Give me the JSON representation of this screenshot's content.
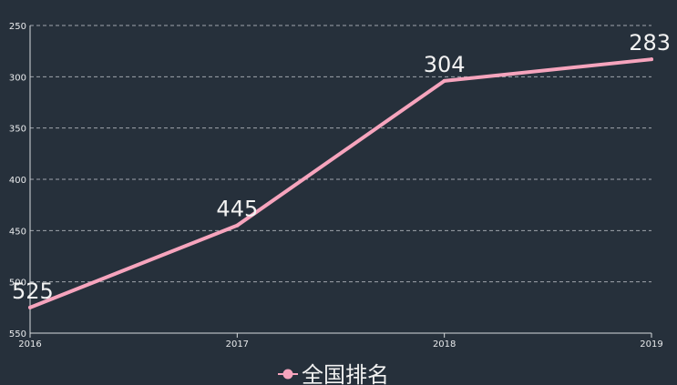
{
  "chart_data": {
    "type": "line",
    "categories": [
      "2016",
      "2017",
      "2018",
      "2019"
    ],
    "series": [
      {
        "name": "全国排名",
        "values": [
          525,
          445,
          304,
          283
        ]
      }
    ],
    "ylim": [
      250,
      550
    ],
    "y_inverted": true,
    "yticks": [
      250,
      300,
      350,
      400,
      450,
      500,
      550
    ],
    "grid": true,
    "legend_position": "bottom-center",
    "data_labels": true
  },
  "colors": {
    "background": "#26303b",
    "series": "#f6a4bd",
    "grid": "#c9cdd2",
    "text": "#f2f2f2"
  }
}
